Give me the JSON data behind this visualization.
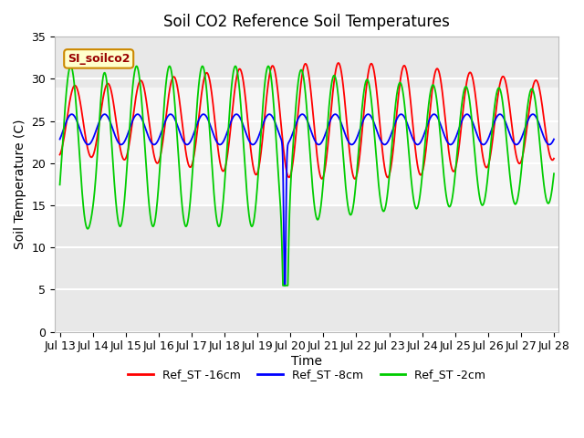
{
  "title": "Soil CO2 Reference Soil Temperatures",
  "xlabel": "Time",
  "ylabel": "Soil Temperature (C)",
  "ylim": [
    0,
    35
  ],
  "yticks": [
    0,
    5,
    10,
    15,
    20,
    25,
    30,
    35
  ],
  "x_tick_labels": [
    "Jul 13",
    "Jul 14",
    "Jul 15",
    "Jul 16",
    "Jul 17",
    "Jul 18",
    "Jul 19",
    "Jul 20",
    "Jul 21",
    "Jul 22",
    "Jul 23",
    "Jul 24",
    "Jul 25",
    "Jul 26",
    "Jul 27",
    "Jul 28"
  ],
  "legend_labels": [
    "Ref_ST -16cm",
    "Ref_ST -8cm",
    "Ref_ST -2cm"
  ],
  "legend_colors": [
    "#ff0000",
    "#0000ff",
    "#00cc00"
  ],
  "annotation_text": "SI_soilco2",
  "annotation_bg": "#ffffcc",
  "annotation_border": "#cc8800",
  "shaded_band_lo": 15,
  "shaded_band_hi": 29,
  "background_color": "#ffffff",
  "plot_bg_color": "#e8e8e8",
  "shaded_color": "#f5f5f5",
  "title_fontsize": 12,
  "axis_fontsize": 10,
  "tick_fontsize": 9
}
